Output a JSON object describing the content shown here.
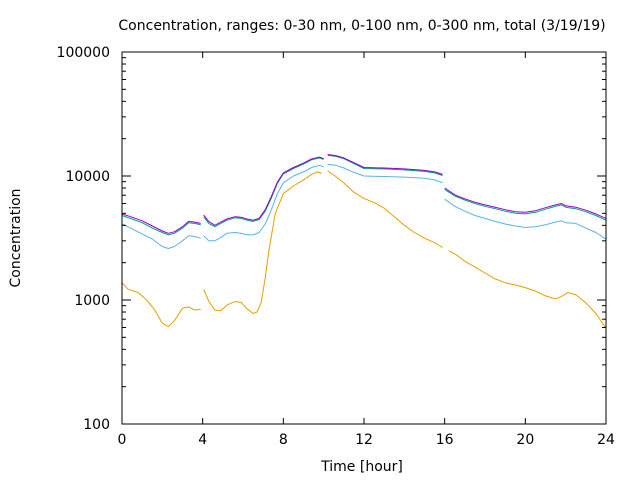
{
  "chart_data": {
    "type": "line",
    "title": "Concentration, ranges: 0-30 nm, 0-100 nm, 0-300 nm, total (3/19/19)",
    "xlabel": "Time [hour]",
    "ylabel": "Concentration",
    "xlim": [
      0,
      24
    ],
    "ylim": [
      100,
      100000
    ],
    "yscale": "log",
    "grid": false,
    "x_ticks": [
      0,
      4,
      8,
      12,
      16,
      20,
      24
    ],
    "x_tick_labels": [
      "0",
      "4",
      "8",
      "12",
      "16",
      "20",
      "24"
    ],
    "y_ticks": [
      100,
      1000,
      10000,
      100000
    ],
    "y_tick_labels": [
      "100",
      "1000",
      "10000",
      "100000"
    ],
    "series": [
      {
        "color": "#e69f00",
        "segments": [
          {
            "x": [
              0,
              0.3,
              0.8,
              1.2,
              1.6,
              2.0,
              2.3,
              2.6,
              3.0,
              3.3,
              3.6,
              3.9
            ],
            "y": [
              1380,
              1220,
              1150,
              1010,
              840,
              650,
              610,
              680,
              860,
              880,
              830,
              840
            ]
          },
          {
            "x": [
              4.05,
              4.3,
              4.6,
              4.9,
              5.2,
              5.6,
              5.9,
              6.2,
              6.5,
              6.7,
              6.9,
              7.1,
              7.3,
              7.6,
              8.0,
              8.5,
              9.0,
              9.4,
              9.7,
              9.9
            ],
            "y": [
              1220,
              980,
              830,
              820,
              910,
              970,
              960,
              850,
              780,
              800,
              950,
              1500,
              2600,
              5000,
              7200,
              8300,
              9300,
              10300,
              10800,
              10500
            ]
          },
          {
            "x": [
              10.2,
              10.6,
              11.0,
              11.5,
              12.0,
              12.5,
              13.0,
              13.5,
              14.0,
              14.5,
              15.0,
              15.5,
              15.9
            ],
            "y": [
              11000,
              9900,
              8800,
              7400,
              6600,
              6100,
              5500,
              4700,
              4000,
              3500,
              3150,
              2900,
              2650
            ]
          },
          {
            "x": [
              16.2,
              16.6,
              17.0,
              17.5,
              18.0,
              18.5,
              19.0,
              19.5,
              20.0,
              20.5,
              21.0,
              21.5,
              21.8,
              22.1,
              22.5,
              23.0,
              23.5,
              24.0
            ],
            "y": [
              2500,
              2300,
              2050,
              1850,
              1650,
              1480,
              1380,
              1320,
              1260,
              1180,
              1080,
              1020,
              1070,
              1150,
              1100,
              950,
              780,
              590
            ]
          }
        ]
      },
      {
        "color": "#56b4e9",
        "segments": [
          {
            "x": [
              0,
              0.5,
              1.0,
              1.5,
              2.0,
              2.3,
              2.6,
              3.0,
              3.3,
              3.6,
              3.9
            ],
            "y": [
              4100,
              3750,
              3400,
              3100,
              2700,
              2600,
              2700,
              3000,
              3300,
              3250,
              3150
            ]
          },
          {
            "x": [
              4.05,
              4.3,
              4.6,
              4.9,
              5.2,
              5.6,
              5.9,
              6.2,
              6.5,
              6.8,
              7.1,
              7.4,
              7.7,
              8.0,
              8.5,
              9.0,
              9.4,
              9.8,
              10.0
            ],
            "y": [
              3300,
              3000,
              3000,
              3200,
              3450,
              3500,
              3450,
              3350,
              3350,
              3500,
              4100,
              5300,
              7200,
              8800,
              10000,
              10800,
              11700,
              12200,
              11800
            ]
          },
          {
            "x": [
              10.2,
              10.6,
              11.0,
              11.5,
              12.0,
              13.0,
              14.0,
              15.0,
              15.5,
              15.9
            ],
            "y": [
              12400,
              12200,
              11600,
              10700,
              10000,
              9900,
              9800,
              9600,
              9300,
              8800
            ]
          },
          {
            "x": [
              16.0,
              16.5,
              17.0,
              17.5,
              18.0,
              18.5,
              19.0,
              19.5,
              20.0,
              20.5,
              21.0,
              21.5,
              21.8,
              22.0,
              22.5,
              23.0,
              23.5,
              24.0
            ],
            "y": [
              6500,
              5700,
              5200,
              4800,
              4550,
              4300,
              4100,
              3950,
              3850,
              3900,
              4050,
              4250,
              4350,
              4200,
              4150,
              3800,
              3500,
              3100
            ]
          }
        ]
      },
      {
        "color": "#009e73",
        "segments": [
          {
            "x": [
              0,
              0.5,
              1.0,
              1.5,
              2.0,
              2.3,
              2.6,
              3.0,
              3.3,
              3.6,
              3.9
            ],
            "y": [
              4800,
              4500,
              4200,
              3800,
              3500,
              3350,
              3450,
              3800,
              4200,
              4150,
              4050
            ]
          },
          {
            "x": [
              4.05,
              4.3,
              4.6,
              4.9,
              5.2,
              5.6,
              5.9,
              6.2,
              6.5,
              6.8,
              7.1,
              7.4,
              7.7,
              8.0,
              8.5,
              9.0,
              9.4,
              9.8,
              10.0
            ],
            "y": [
              4700,
              4150,
              3900,
              4150,
              4400,
              4600,
              4550,
              4400,
              4300,
              4450,
              5200,
              6600,
              8700,
              10400,
              11500,
              12500,
              13500,
              14000,
              13600
            ]
          },
          {
            "x": [
              10.2,
              10.6,
              11.0,
              11.5,
              12.0,
              13.0,
              14.0,
              15.0,
              15.5,
              15.9
            ],
            "y": [
              14700,
              14400,
              13800,
              12600,
              11500,
              11400,
              11200,
              10900,
              10600,
              10100
            ]
          },
          {
            "x": [
              16.0,
              16.5,
              17.0,
              17.5,
              18.0,
              18.5,
              19.0,
              19.5,
              20.0,
              20.5,
              21.0,
              21.5,
              21.8,
              22.0,
              22.5,
              23.0,
              23.5,
              24.0
            ],
            "y": [
              7800,
              6900,
              6400,
              6000,
              5700,
              5450,
              5200,
              5000,
              4950,
              5100,
              5400,
              5700,
              5850,
              5600,
              5450,
              5150,
              4800,
              4400
            ]
          }
        ]
      },
      {
        "color": "#9400d3",
        "segments": [
          {
            "x": [
              0,
              0.5,
              1.0,
              1.5,
              2.0,
              2.3,
              2.6,
              3.0,
              3.3,
              3.6,
              3.9
            ],
            "y": [
              4950,
              4650,
              4350,
              3950,
              3600,
              3450,
              3550,
              3900,
              4300,
              4250,
              4150
            ]
          },
          {
            "x": [
              4.05,
              4.3,
              4.6,
              4.9,
              5.2,
              5.6,
              5.9,
              6.2,
              6.5,
              6.8,
              7.1,
              7.4,
              7.7,
              8.0,
              8.5,
              9.0,
              9.4,
              9.8,
              10.0
            ],
            "y": [
              4850,
              4300,
              4000,
              4250,
              4500,
              4700,
              4650,
              4500,
              4400,
              4550,
              5350,
              6800,
              8900,
              10600,
              11700,
              12700,
              13700,
              14200,
              13800
            ]
          },
          {
            "x": [
              10.2,
              10.6,
              11.0,
              11.5,
              12.0,
              13.0,
              14.0,
              15.0,
              15.5,
              15.9
            ],
            "y": [
              14900,
              14600,
              14000,
              12800,
              11700,
              11600,
              11400,
              11100,
              10800,
              10300
            ]
          },
          {
            "x": [
              16.0,
              16.5,
              17.0,
              17.5,
              18.0,
              18.5,
              19.0,
              19.5,
              20.0,
              20.5,
              21.0,
              21.5,
              21.8,
              22.0,
              22.5,
              23.0,
              23.5,
              24.0
            ],
            "y": [
              8000,
              7050,
              6550,
              6150,
              5850,
              5600,
              5350,
              5150,
              5100,
              5250,
              5550,
              5850,
              6000,
              5750,
              5600,
              5300,
              4950,
              4550
            ]
          }
        ]
      }
    ]
  }
}
